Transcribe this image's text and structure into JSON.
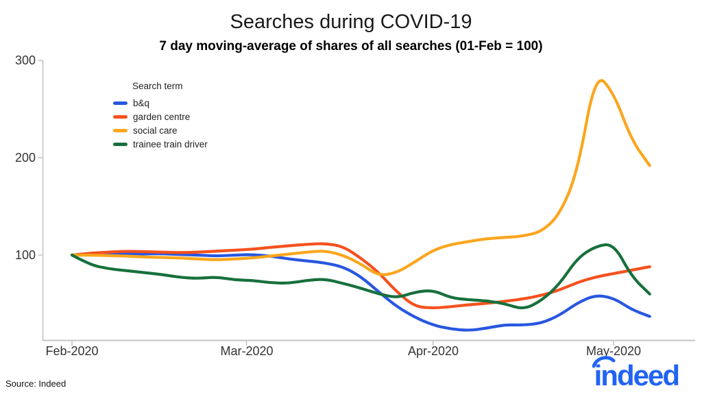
{
  "header": {
    "title": "Searches during COVID-19",
    "subtitle": "7 day moving-average of shares of all searches (01-Feb = 100)"
  },
  "footer": {
    "source": "Source: Indeed",
    "logo_text": "indeed",
    "logo_color": "#2164f3"
  },
  "chart_data": {
    "type": "line",
    "title": "Searches during COVID-19",
    "subtitle": "7 day moving-average of shares of all searches (01-Feb = 100)",
    "legend_title": "Search term",
    "legend_position": "top-left-inside",
    "grid": false,
    "axis_color": "#c4c4c4",
    "tick_text_color": "#333333",
    "x_start_date": "2020-02-01",
    "x_days": [
      0,
      3,
      6,
      9,
      12,
      15,
      18,
      21,
      24,
      27,
      30,
      33,
      36,
      39,
      42,
      45,
      48,
      51,
      54,
      57,
      60,
      63,
      66,
      69,
      72,
      75,
      78,
      81,
      84,
      87,
      90,
      93,
      96
    ],
    "x_tick_days": [
      0,
      29,
      60,
      90
    ],
    "x_tick_labels": [
      "Feb-2020",
      "Mar-2020",
      "Apr-2020",
      "May-2020"
    ],
    "y_ticks": [
      100,
      200,
      300
    ],
    "ylim": [
      12,
      300
    ],
    "xlim_days": [
      0,
      101
    ],
    "series": [
      {
        "name": "b&q",
        "color": "#2857e0",
        "values": [
          100,
          101,
          101,
          101.5,
          101,
          101.5,
          100.5,
          100,
          99,
          100,
          100.5,
          99,
          96,
          94,
          92,
          88,
          78,
          62,
          47,
          36,
          28,
          24,
          22.5,
          25,
          28.5,
          28,
          30,
          38,
          51,
          59,
          56,
          44,
          37
        ]
      },
      {
        "name": "garden centre",
        "color": "#f4511e",
        "values": [
          100,
          102,
          103,
          104,
          103.5,
          103,
          102.5,
          103,
          104,
          105,
          106,
          108,
          109.5,
          111,
          112,
          109,
          97,
          82,
          62,
          47,
          45.5,
          47,
          49,
          50.5,
          52.5,
          55,
          58.5,
          64,
          72,
          77.5,
          81,
          84.5,
          88
        ]
      },
      {
        "name": "social care",
        "color": "#fba61e",
        "values": [
          100,
          100,
          99.5,
          99,
          98,
          97.5,
          97,
          96,
          95,
          96,
          97,
          99,
          101,
          103,
          104.5,
          100,
          91,
          78.5,
          82,
          93,
          105,
          111,
          114,
          117,
          118,
          119.5,
          124,
          141,
          185,
          288,
          267,
          218,
          192
        ]
      },
      {
        "name": "trainee train driver",
        "color": "#17703c",
        "values": [
          100,
          90,
          86,
          84,
          82,
          80,
          77,
          76,
          77.5,
          74.5,
          74,
          71.5,
          71,
          74,
          75.5,
          71,
          66,
          60,
          56,
          62,
          64,
          56,
          54,
          53,
          50,
          44,
          53,
          70,
          97,
          109,
          112,
          78,
          60
        ]
      }
    ]
  }
}
